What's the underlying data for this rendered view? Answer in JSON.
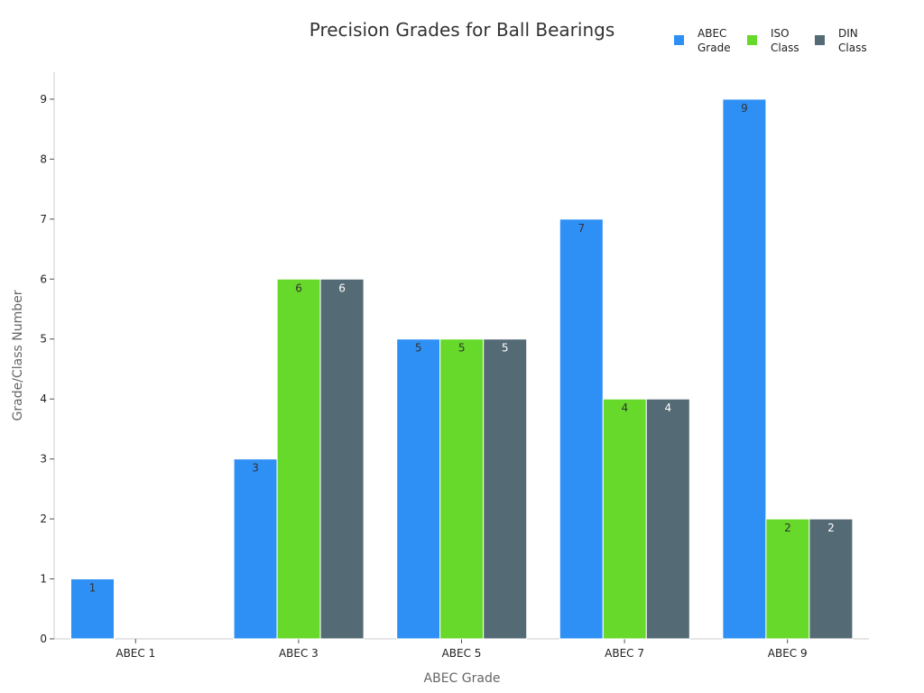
{
  "chart_data": {
    "type": "bar",
    "title": "Precision Grades for Ball Bearings",
    "xlabel": "ABEC Grade",
    "ylabel": "Grade/Class Number",
    "categories": [
      "ABEC 1",
      "ABEC 3",
      "ABEC 5",
      "ABEC 7",
      "ABEC 9"
    ],
    "series": [
      {
        "name": "ABEC Grade",
        "legend_lines": [
          "ABEC",
          "Grade"
        ],
        "color": "#2e90f5",
        "label_color": "#333333",
        "values": [
          1,
          3,
          5,
          7,
          9
        ]
      },
      {
        "name": "ISO Class",
        "legend_lines": [
          "ISO",
          "Class"
        ],
        "color": "#66d92a",
        "label_color": "#333333",
        "values": [
          null,
          6,
          5,
          4,
          2
        ]
      },
      {
        "name": "DIN Class",
        "legend_lines": [
          "DIN",
          "Class"
        ],
        "color": "#546a75",
        "label_color": "#ffffff",
        "values": [
          null,
          6,
          5,
          4,
          2
        ]
      }
    ],
    "ylim": [
      0,
      9.45
    ],
    "yticks": [
      0,
      1,
      2,
      3,
      4,
      5,
      6,
      7,
      8,
      9
    ],
    "grid": false,
    "legend_position": "top-right"
  }
}
